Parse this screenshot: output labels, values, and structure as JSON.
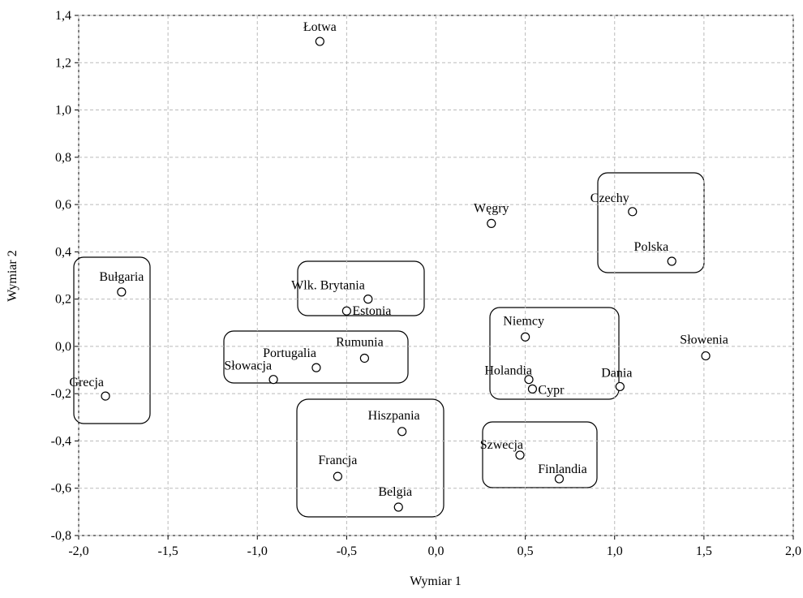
{
  "chart_data": {
    "type": "scatter",
    "x_label": "Wymiar 1",
    "y_label": "Wymiar 2",
    "points": [
      "Łotwa",
      "Węgry",
      "Czechy",
      "Polska",
      "Bułgaria",
      "Wlk. Brytania",
      "Estonia",
      "Rumunia",
      "Portugalia",
      "Słowacja",
      "Grecja",
      "Niemcy",
      "Holandia",
      "Cypr",
      "Dania",
      "Słowenia",
      "Hiszpania",
      "Szwecja",
      "Finlandia",
      "Francja",
      "Belgia"
    ],
    "x": [
      -0.65,
      0.31,
      1.1,
      1.32,
      -1.76,
      -0.38,
      -0.5,
      -0.4,
      -0.67,
      -0.91,
      -1.85,
      0.5,
      0.52,
      0.54,
      1.03,
      1.51,
      -0.19,
      0.47,
      0.69,
      -0.55,
      -0.21
    ],
    "values": [
      1.29,
      0.52,
      0.57,
      0.36,
      0.23,
      0.2,
      0.15,
      -0.05,
      -0.09,
      -0.14,
      -0.21,
      0.04,
      -0.14,
      -0.18,
      -0.17,
      -0.04,
      -0.36,
      -0.46,
      -0.56,
      -0.55,
      -0.68
    ],
    "xlim": [
      -2.0,
      2.0
    ],
    "ylim": [
      -0.8,
      1.4
    ],
    "xticks": [
      {
        "value": -2.0,
        "label": "-2,0"
      },
      {
        "value": -1.5,
        "label": "-1,5"
      },
      {
        "value": -1.0,
        "label": "-1,0"
      },
      {
        "value": -0.5,
        "label": "-0,5"
      },
      {
        "value": 0.0,
        "label": "0,0"
      },
      {
        "value": 0.5,
        "label": "0,5"
      },
      {
        "value": 1.0,
        "label": "1,0"
      },
      {
        "value": 1.5,
        "label": "1,5"
      },
      {
        "value": 2.0,
        "label": "2,0"
      }
    ],
    "yticks": [
      {
        "value": -0.8,
        "label": "-0,8"
      },
      {
        "value": -0.6,
        "label": "-0,6"
      },
      {
        "value": -0.4,
        "label": "-0,4"
      },
      {
        "value": -0.2,
        "label": "-0,2"
      },
      {
        "value": 0.0,
        "label": "0,0"
      },
      {
        "value": 0.2,
        "label": "0,2"
      },
      {
        "value": 0.4,
        "label": "0,4"
      },
      {
        "value": 0.6,
        "label": "0,6"
      },
      {
        "value": 0.8,
        "label": "0,8"
      },
      {
        "value": 1.0,
        "label": "1,0"
      },
      {
        "value": 1.2,
        "label": "1,2"
      },
      {
        "value": 1.4,
        "label": "1,4"
      }
    ],
    "grid": true,
    "color": "#000000"
  }
}
